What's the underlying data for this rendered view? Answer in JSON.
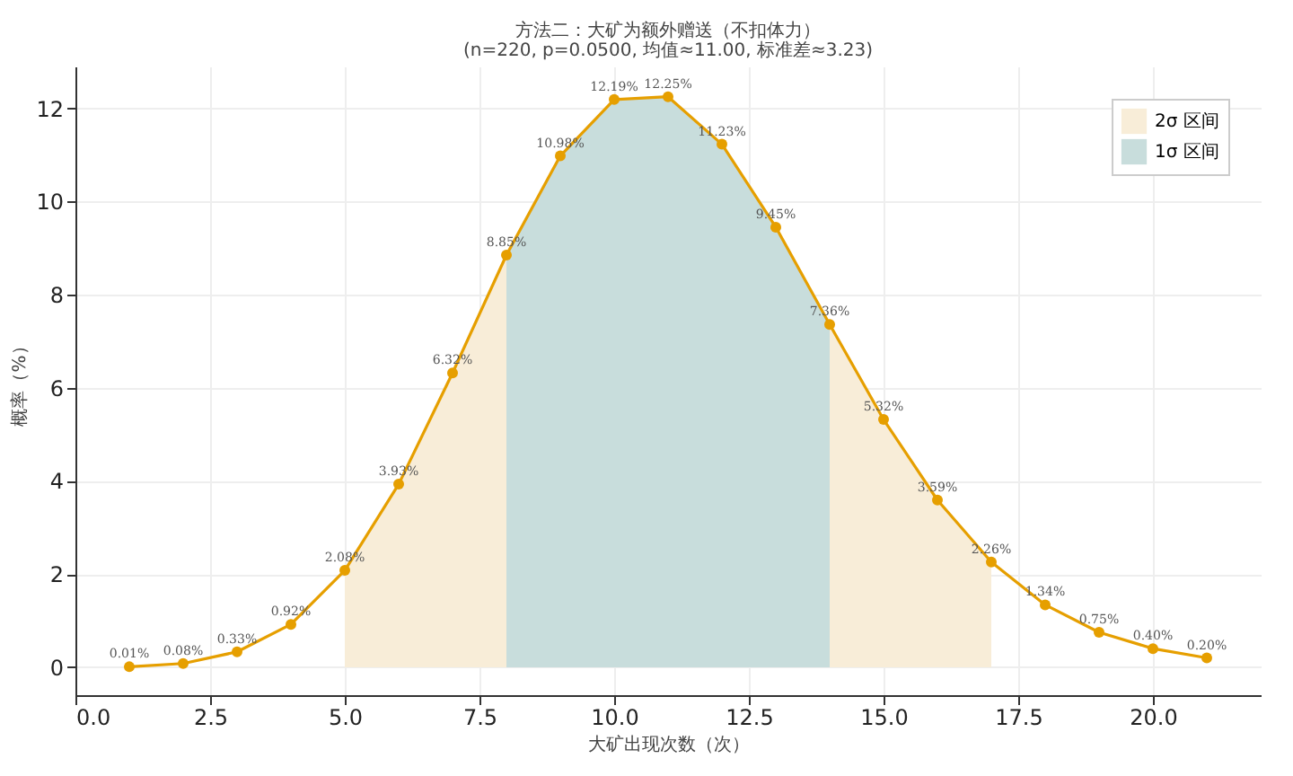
{
  "chart_data": {
    "type": "line",
    "title": "方法二：大矿为额外赠送（不扣体力）",
    "subtitle": "(n=220, p=0.0500, 均值≈11.00, 标准差≈3.23)",
    "xlabel": "大矿出现次数（次）",
    "ylabel": "概率（%）",
    "x": [
      1,
      2,
      3,
      4,
      5,
      6,
      7,
      8,
      9,
      10,
      11,
      12,
      13,
      14,
      15,
      16,
      17,
      18,
      19,
      20,
      21
    ],
    "series": [
      {
        "type": "area",
        "name": "2σ 区间",
        "color": "#f8edd8",
        "marker": "none",
        "x": [
          5,
          6,
          7,
          8,
          9,
          10,
          11,
          12,
          13,
          14,
          15,
          16,
          17
        ],
        "values": [
          2.08,
          3.93,
          6.32,
          8.85,
          null,
          null,
          null,
          null,
          null,
          7.36,
          5.32,
          3.59,
          2.26
        ]
      },
      {
        "type": "area",
        "name": "1σ 区间",
        "color": "#c8dddc",
        "marker": "none",
        "x": [
          8,
          9,
          10,
          11,
          12,
          13,
          14
        ],
        "values": [
          8.85,
          10.98,
          12.19,
          12.25,
          11.23,
          9.45,
          7.36
        ]
      },
      {
        "color": "#e69f00",
        "values": [
          0.01,
          0.08,
          0.33,
          0.92,
          2.08,
          3.93,
          6.32,
          8.85,
          10.98,
          12.19,
          12.25,
          11.23,
          9.45,
          7.36,
          5.32,
          3.59,
          2.26,
          1.34,
          0.75,
          0.4,
          0.2
        ],
        "value_labels": [
          "0.01%",
          "0.08%",
          "0.33%",
          "0.92%",
          "2.08%",
          "3.93%",
          "6.32%",
          "8.85%",
          "10.98%",
          "12.19%",
          "12.25%",
          "11.23%",
          "9.45%",
          "7.36%",
          "5.32%",
          "3.59%",
          "2.26%",
          "1.34%",
          "0.75%",
          "0.40%",
          "0.20%"
        ]
      }
    ],
    "xlim": [
      0,
      22
    ],
    "xticks": [
      {
        "value": 0,
        "label": "0.0"
      },
      {
        "value": 2.5,
        "label": "2.5"
      },
      {
        "value": 5,
        "label": "5.0"
      },
      {
        "value": 7.5,
        "label": "7.5"
      },
      {
        "value": 10,
        "label": "10.0"
      },
      {
        "value": 12.5,
        "label": "12.5"
      },
      {
        "value": 15,
        "label": "15.0"
      },
      {
        "value": 17.5,
        "label": "17.5"
      },
      {
        "value": 20,
        "label": "20.0"
      }
    ],
    "ylim": [
      -0.6,
      12.9
    ],
    "yticks": [
      0,
      2,
      4,
      6,
      8,
      10,
      12
    ],
    "grid": true,
    "legend": "top right",
    "marker": "circle",
    "line_style": "solid"
  }
}
